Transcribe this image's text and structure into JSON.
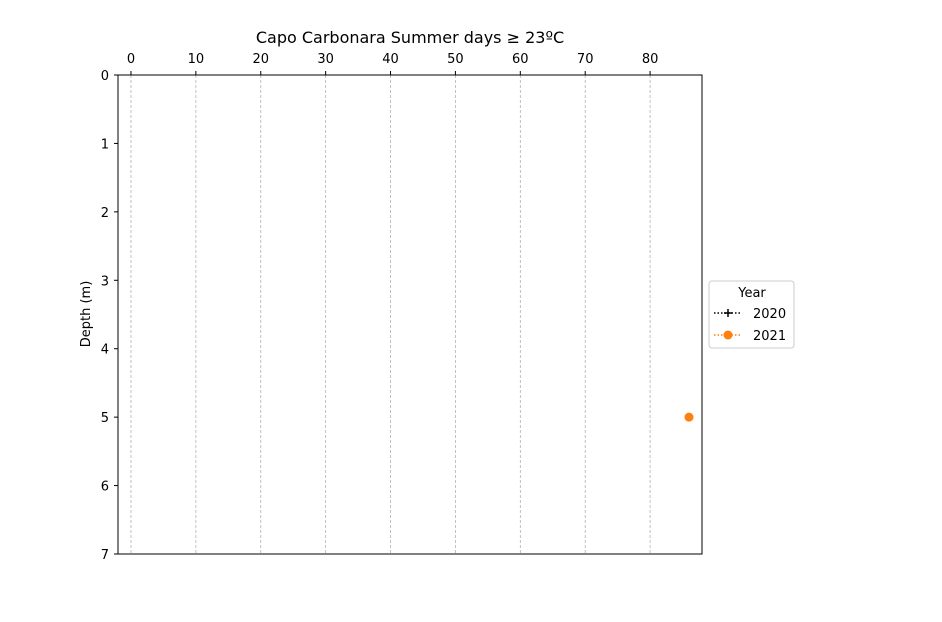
{
  "chart_data": {
    "type": "scatter",
    "title": "Capo Carbonara Summer days ≥ 23ºC",
    "xlabel": "",
    "ylabel": "Depth (m)",
    "xlim": [
      -2,
      88
    ],
    "ylim": [
      7,
      0
    ],
    "x_axis_position": "top",
    "y_inverted": true,
    "x_ticks": [
      0,
      10,
      20,
      30,
      40,
      50,
      60,
      70,
      80
    ],
    "y_ticks": [
      0,
      1,
      2,
      3,
      4,
      5,
      6,
      7
    ],
    "grid": {
      "x": true,
      "y": false,
      "style": "dashed"
    },
    "legend": {
      "title": "Year",
      "placement": "center-right outside"
    },
    "series": [
      {
        "name": "2020",
        "color": "#000000",
        "marker": "plus",
        "line": "dotted",
        "points": []
      },
      {
        "name": "2021",
        "color": "#ff7f0e",
        "marker": "circle",
        "line": "dotted",
        "points": [
          {
            "x": 86,
            "y": 5
          }
        ]
      }
    ]
  }
}
